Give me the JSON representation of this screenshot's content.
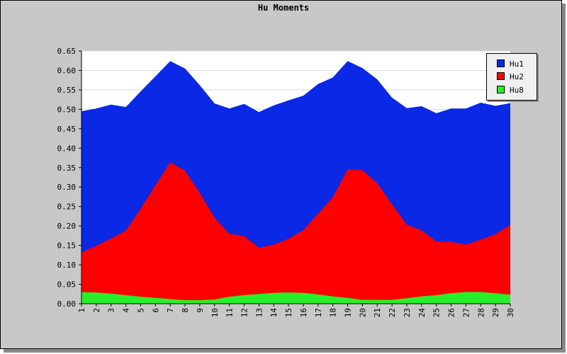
{
  "chart_data": {
    "type": "area",
    "title": "Hu Moments",
    "x": [
      "1",
      "2",
      "3",
      "4",
      "5",
      "6",
      "7",
      "8",
      "9",
      "10",
      "11",
      "12",
      "13",
      "14",
      "15",
      "16",
      "17",
      "18",
      "19",
      "20",
      "21",
      "22",
      "23",
      "24",
      "25",
      "26",
      "27",
      "28",
      "29",
      "30"
    ],
    "ylim": [
      0,
      0.65
    ],
    "yticks": [
      "0.00",
      "0.05",
      "0.10",
      "0.15",
      "0.20",
      "0.25",
      "0.30",
      "0.35",
      "0.40",
      "0.45",
      "0.50",
      "0.55",
      "0.60",
      "0.65"
    ],
    "grid": true,
    "legend_position": "top-right",
    "stacked": false,
    "series": [
      {
        "name": "Hu1",
        "color": "#0a28e6",
        "values": [
          0.495,
          0.502,
          0.512,
          0.506,
          0.546,
          0.585,
          0.624,
          0.605,
          0.562,
          0.515,
          0.502,
          0.514,
          0.493,
          0.51,
          0.523,
          0.535,
          0.565,
          0.582,
          0.624,
          0.606,
          0.577,
          0.53,
          0.503,
          0.508,
          0.49,
          0.502,
          0.502,
          0.517,
          0.509,
          0.516
        ]
      },
      {
        "name": "Hu2",
        "color": "#ff0000",
        "values": [
          0.132,
          0.149,
          0.168,
          0.188,
          0.245,
          0.305,
          0.364,
          0.342,
          0.285,
          0.221,
          0.18,
          0.174,
          0.144,
          0.152,
          0.167,
          0.189,
          0.232,
          0.274,
          0.346,
          0.343,
          0.31,
          0.256,
          0.203,
          0.189,
          0.16,
          0.159,
          0.152,
          0.165,
          0.179,
          0.203
        ]
      },
      {
        "name": "Hu8",
        "color": "#28f028",
        "values": [
          0.03,
          0.029,
          0.026,
          0.022,
          0.018,
          0.015,
          0.012,
          0.009,
          0.009,
          0.011,
          0.018,
          0.022,
          0.025,
          0.028,
          0.029,
          0.028,
          0.024,
          0.019,
          0.015,
          0.01,
          0.01,
          0.01,
          0.014,
          0.019,
          0.022,
          0.027,
          0.03,
          0.03,
          0.027,
          0.023
        ]
      }
    ]
  }
}
